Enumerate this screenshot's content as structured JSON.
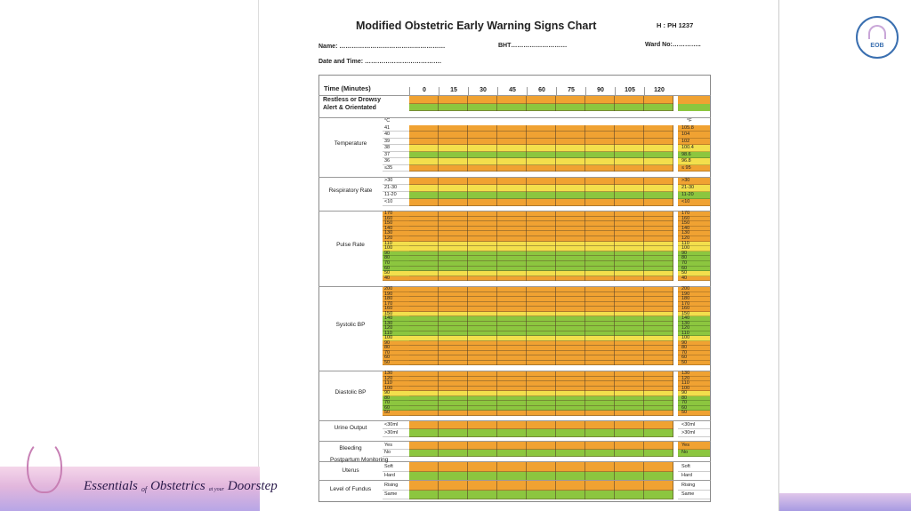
{
  "header": {
    "title": "Modified Obstetric Early Warning Signs Chart",
    "hospital_no": "H : PH 1237",
    "name": "Name: ……………………………………………",
    "bht": "BHT………………………",
    "ward": "Ward No:…………..",
    "date_time": "Date and Time: ………………………………."
  },
  "table": {
    "time_header": "Time (Minutes)",
    "times": [
      "0",
      "15",
      "30",
      "45",
      "60",
      "75",
      "90",
      "105",
      "120"
    ],
    "sections": [
      {
        "rows": [
          {
            "left": "Restless or Drowsy",
            "color": "#f0a232"
          },
          {
            "left": "Alert & Orientated",
            "color": "#8cc63f"
          }
        ]
      },
      {
        "label": "Temperature",
        "unit_left": "°C",
        "unit_right": "°F",
        "rows": [
          {
            "left": "41",
            "right": "105.8",
            "color": "#f0a232"
          },
          {
            "left": "40",
            "right": "104",
            "color": "#f0a232"
          },
          {
            "left": "39",
            "right": "102",
            "color": "#f0a232"
          },
          {
            "left": "38",
            "right": "100.4",
            "color": "#f3df4c"
          },
          {
            "left": "37",
            "right": "98.6",
            "color": "#8cc63f"
          },
          {
            "left": "36",
            "right": "96.8",
            "color": "#f3df4c"
          },
          {
            "left": "≤35",
            "right": "≤ 95",
            "color": "#f0a232"
          }
        ]
      },
      {
        "label": "Respiratory Rate",
        "rows": [
          {
            "left": ">30",
            "right": ">30",
            "color": "#f0a232"
          },
          {
            "left": "21-30",
            "right": "21-30",
            "color": "#f3df4c"
          },
          {
            "left": "11-20",
            "right": "11-20",
            "color": "#8cc63f"
          },
          {
            "left": "<10",
            "right": "<10",
            "color": "#f0a232"
          }
        ]
      },
      {
        "label": "Pulse Rate",
        "rows": [
          {
            "left": "170",
            "right": "170",
            "color": "#f0a232"
          },
          {
            "left": "160",
            "right": "160",
            "color": "#f0a232"
          },
          {
            "left": "150",
            "right": "150",
            "color": "#f0a232"
          },
          {
            "left": "140",
            "right": "140",
            "color": "#f0a232"
          },
          {
            "left": "130",
            "right": "130",
            "color": "#f0a232"
          },
          {
            "left": "120",
            "right": "120",
            "color": "#f0a232"
          },
          {
            "left": "110",
            "right": "110",
            "color": "#f3df4c"
          },
          {
            "left": "100",
            "right": "100",
            "color": "#f3df4c"
          },
          {
            "left": "90",
            "right": "90",
            "color": "#8cc63f"
          },
          {
            "left": "80",
            "right": "80",
            "color": "#8cc63f"
          },
          {
            "left": "70",
            "right": "70",
            "color": "#8cc63f"
          },
          {
            "left": "60",
            "right": "60",
            "color": "#8cc63f"
          },
          {
            "left": "50",
            "right": "50",
            "color": "#f3df4c"
          },
          {
            "left": "40",
            "right": "40",
            "color": "#f0a232"
          }
        ]
      },
      {
        "label": "Systolic BP",
        "rows": [
          {
            "left": "200",
            "right": "200",
            "color": "#f0a232"
          },
          {
            "left": "190",
            "right": "190",
            "color": "#f0a232"
          },
          {
            "left": "180",
            "right": "180",
            "color": "#f0a232"
          },
          {
            "left": "170",
            "right": "170",
            "color": "#f0a232"
          },
          {
            "left": "160",
            "right": "160",
            "color": "#f0a232"
          },
          {
            "left": "150",
            "right": "150",
            "color": "#f3df4c"
          },
          {
            "left": "140",
            "right": "140",
            "color": "#8cc63f"
          },
          {
            "left": "130",
            "right": "130",
            "color": "#8cc63f"
          },
          {
            "left": "120",
            "right": "120",
            "color": "#8cc63f"
          },
          {
            "left": "110",
            "right": "110",
            "color": "#8cc63f"
          },
          {
            "left": "100",
            "right": "100",
            "color": "#f3df4c"
          },
          {
            "left": "90",
            "right": "90",
            "color": "#f0a232"
          },
          {
            "left": "80",
            "right": "80",
            "color": "#f0a232"
          },
          {
            "left": "70",
            "right": "70",
            "color": "#f0a232"
          },
          {
            "left": "60",
            "right": "60",
            "color": "#f0a232"
          },
          {
            "left": "50",
            "right": "50",
            "color": "#f0a232"
          }
        ]
      },
      {
        "label": "Diastolic BP",
        "rows": [
          {
            "left": "130",
            "right": "130",
            "color": "#f0a232"
          },
          {
            "left": "120",
            "right": "120",
            "color": "#f0a232"
          },
          {
            "left": "110",
            "right": "110",
            "color": "#f0a232"
          },
          {
            "left": "100",
            "right": "100",
            "color": "#f0a232"
          },
          {
            "left": "90",
            "right": "90",
            "color": "#f3df4c"
          },
          {
            "left": "80",
            "right": "80",
            "color": "#8cc63f"
          },
          {
            "left": "70",
            "right": "70",
            "color": "#8cc63f"
          },
          {
            "left": "60",
            "right": "60",
            "color": "#8cc63f"
          },
          {
            "left": "50",
            "right": "50",
            "color": "#f0a232"
          }
        ]
      },
      {
        "label": "Urine Output",
        "rows": [
          {
            "left": "<30ml",
            "right": "<30ml",
            "color": "#f0a232"
          },
          {
            "left": ">30ml",
            "right": ">30ml",
            "color": "#8cc63f"
          }
        ]
      },
      {
        "label": "Bleeding",
        "rows": [
          {
            "left": "Yes",
            "right": "Yes",
            "color": "#f0a232"
          },
          {
            "left": "No",
            "right": "No",
            "color": "#8cc63f"
          }
        ]
      },
      {
        "label": "Uterus",
        "rows": [
          {
            "left": "Soft",
            "right": "Soft",
            "color": "#f0a232"
          },
          {
            "left": "Hard",
            "right": "Hard",
            "color": "#8cc63f"
          }
        ]
      },
      {
        "label": "Level of Fundus",
        "rows": [
          {
            "left": "Rising",
            "right": "Rising",
            "color": "#f0a232"
          },
          {
            "left": "Same",
            "right": "Same",
            "color": "#8cc63f"
          }
        ]
      }
    ],
    "postpartum_label": "Postpartum Monitoring"
  },
  "branding": {
    "tagline": [
      "Essentials",
      "of",
      "Obstetrics",
      "at your",
      "Doorstep"
    ],
    "logo": "EOB"
  }
}
